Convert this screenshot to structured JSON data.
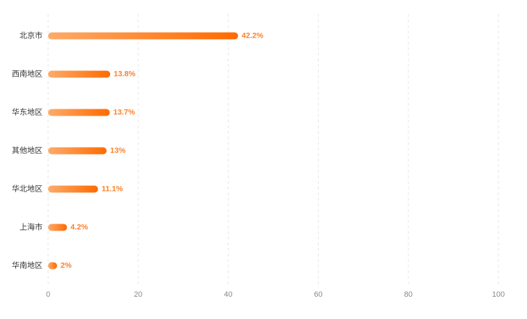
{
  "chart_data": {
    "type": "hbar",
    "categories": [
      "北京市",
      "西南地区",
      "华东地区",
      "其他地区",
      "华北地区",
      "上海市",
      "华南地区"
    ],
    "values": [
      42.2,
      13.8,
      13.7,
      13,
      11.1,
      4.2,
      2
    ],
    "value_labels": [
      "42.2%",
      "13.8%",
      "13.7%",
      "13%",
      "11.1%",
      "4.2%",
      "2%"
    ],
    "color": "#ff6a00",
    "xlim": [
      0,
      100
    ],
    "xticks": [
      0,
      20,
      40,
      60,
      80,
      100
    ],
    "grid": true
  }
}
